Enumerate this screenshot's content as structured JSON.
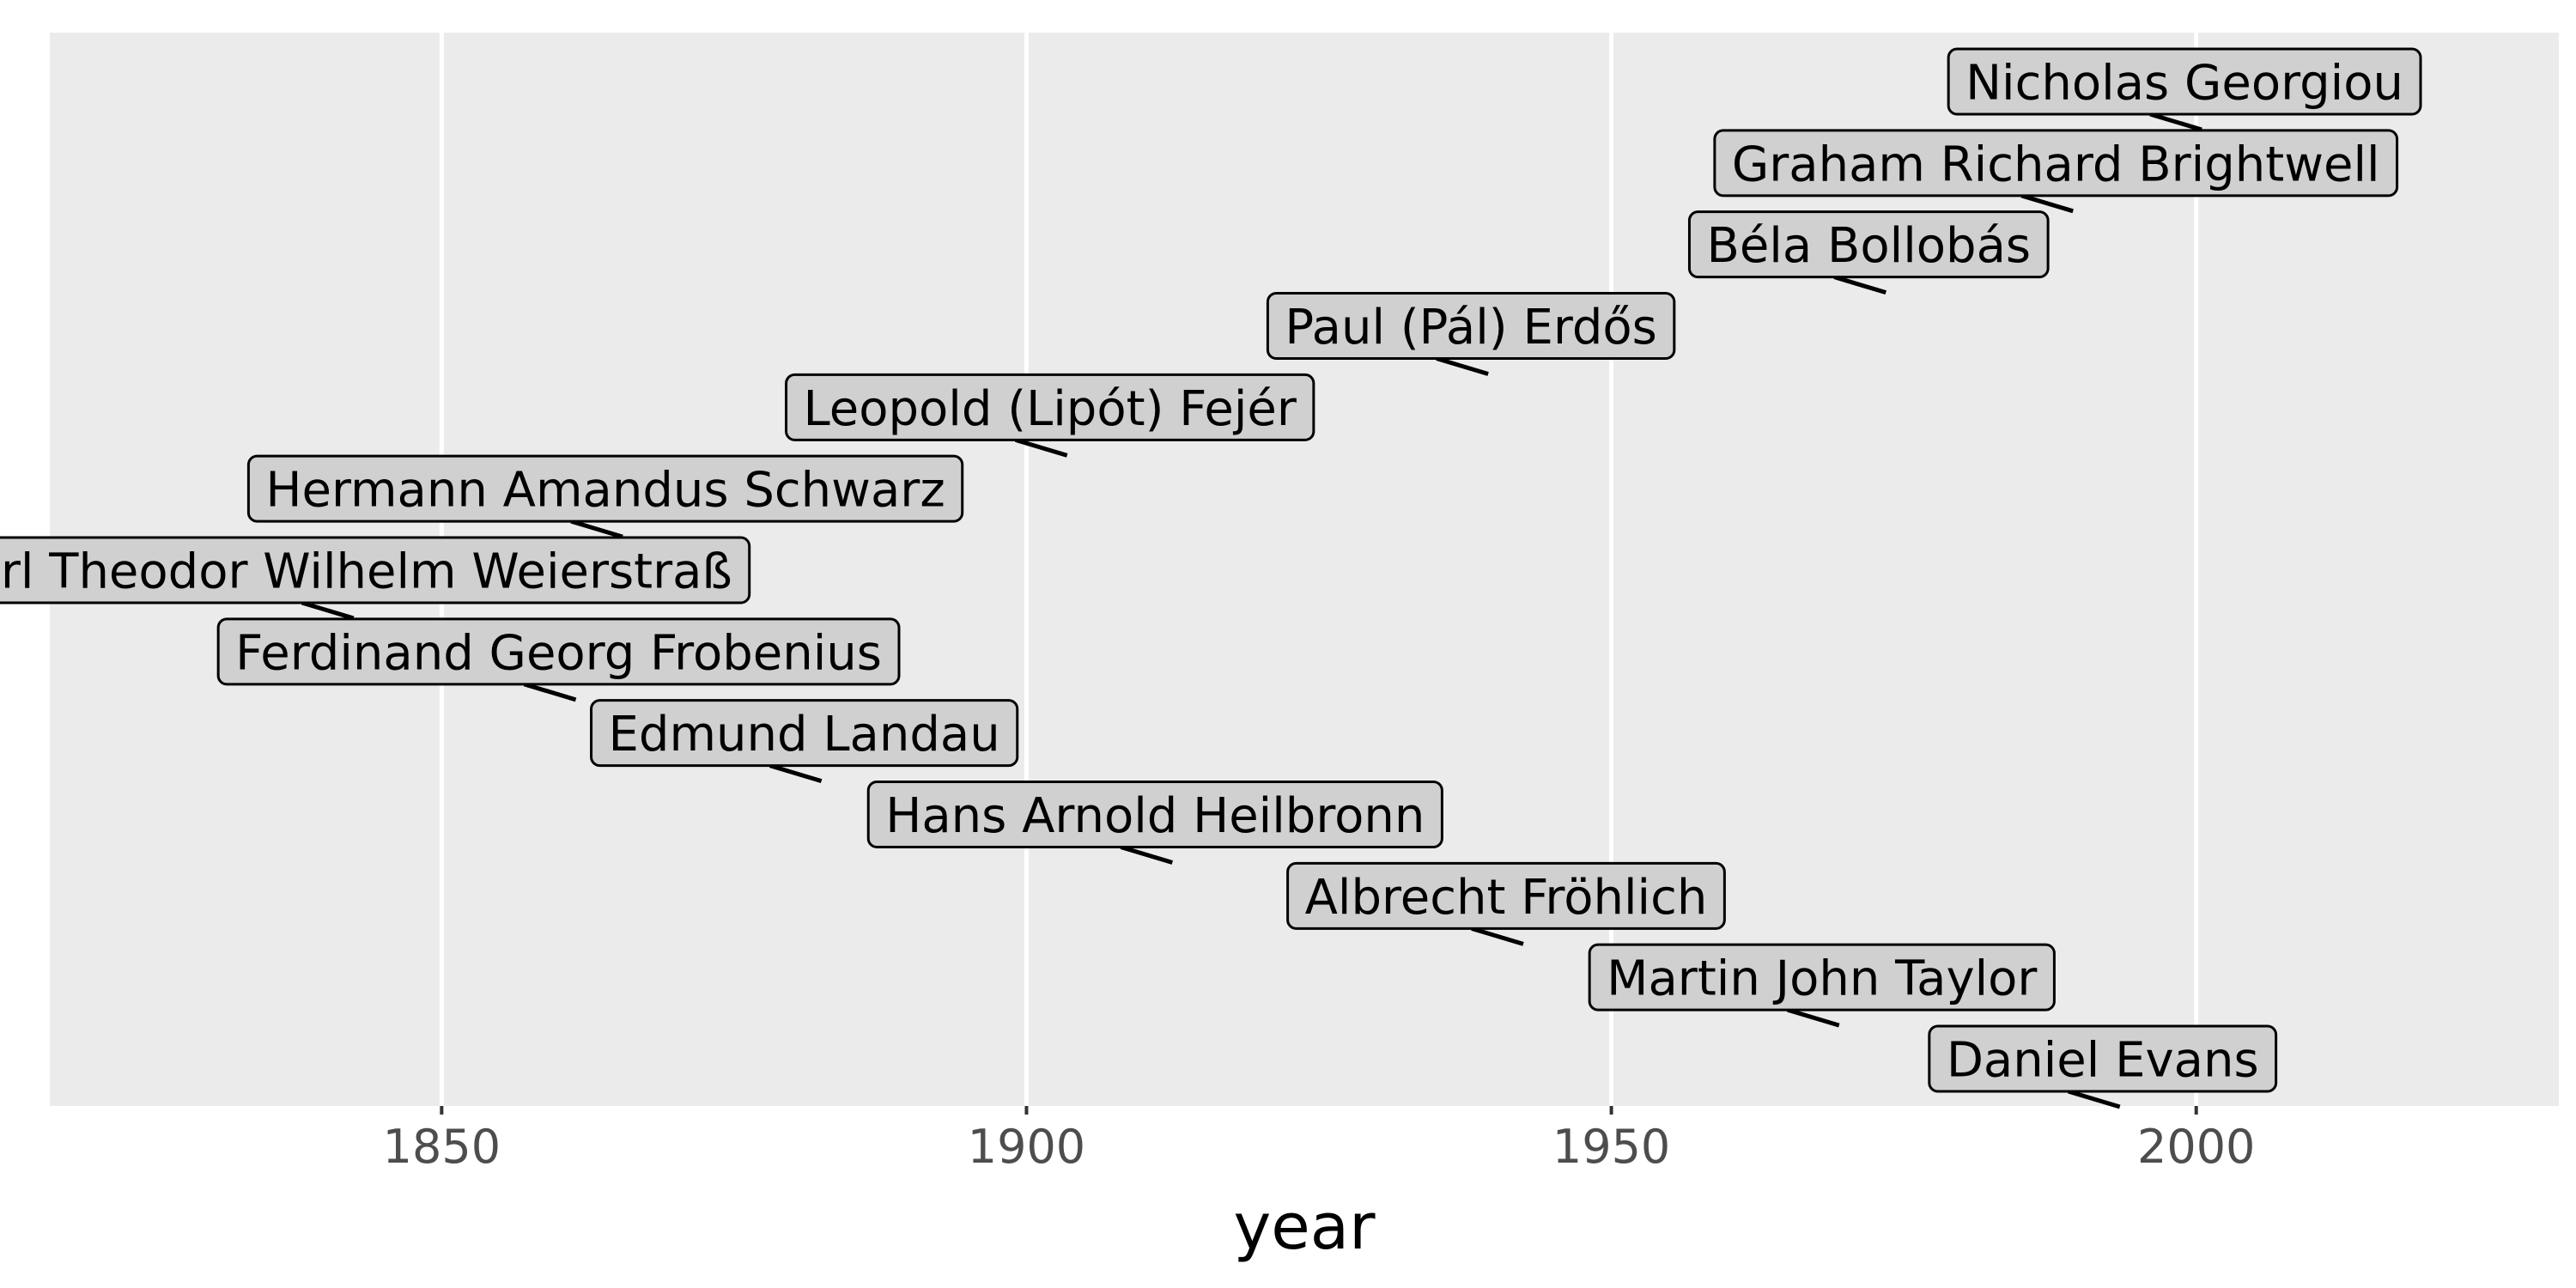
{
  "colors": {
    "panel": "#ebebeb",
    "grid": "#ffffff",
    "label_fill": "#d0d0d0",
    "label_border": "#000000",
    "segment": "#000000",
    "tick_text": "#4d4d4d"
  },
  "chart_data": {
    "type": "timeline",
    "title": "",
    "xlabel": "year",
    "ylabel": "",
    "xlim": [
      1816.5,
      2031
    ],
    "xticks": [
      1850,
      1900,
      1950,
      2000
    ],
    "grid": true,
    "legend": "none",
    "points": [
      {
        "label": "Daniel Evans",
        "x": 1992
      },
      {
        "label": "Martin John Taylor",
        "x": 1968
      },
      {
        "label": "Albrecht Fröhlich",
        "x": 1941
      },
      {
        "label": "Hans Arnold Heilbronn",
        "x": 1911
      },
      {
        "label": "Edmund Landau",
        "x": 1881
      },
      {
        "label": "Ferdinand Georg Frobenius",
        "x": 1860
      },
      {
        "label": "Karl Theodor Wilhelm Weierstraß",
        "x": 1841
      },
      {
        "label": "Hermann Amandus Schwarz",
        "x": 1864
      },
      {
        "label": "Leopold (Lipót) Fejér",
        "x": 1902
      },
      {
        "label": "Paul (Pál) Erdős",
        "x": 1938
      },
      {
        "label": "Béla Bollobás",
        "x": 1972
      },
      {
        "label": "Graham Richard Brightwell",
        "x": 1988
      },
      {
        "label": "Nicholas Georgiou",
        "x": 1999
      }
    ]
  }
}
